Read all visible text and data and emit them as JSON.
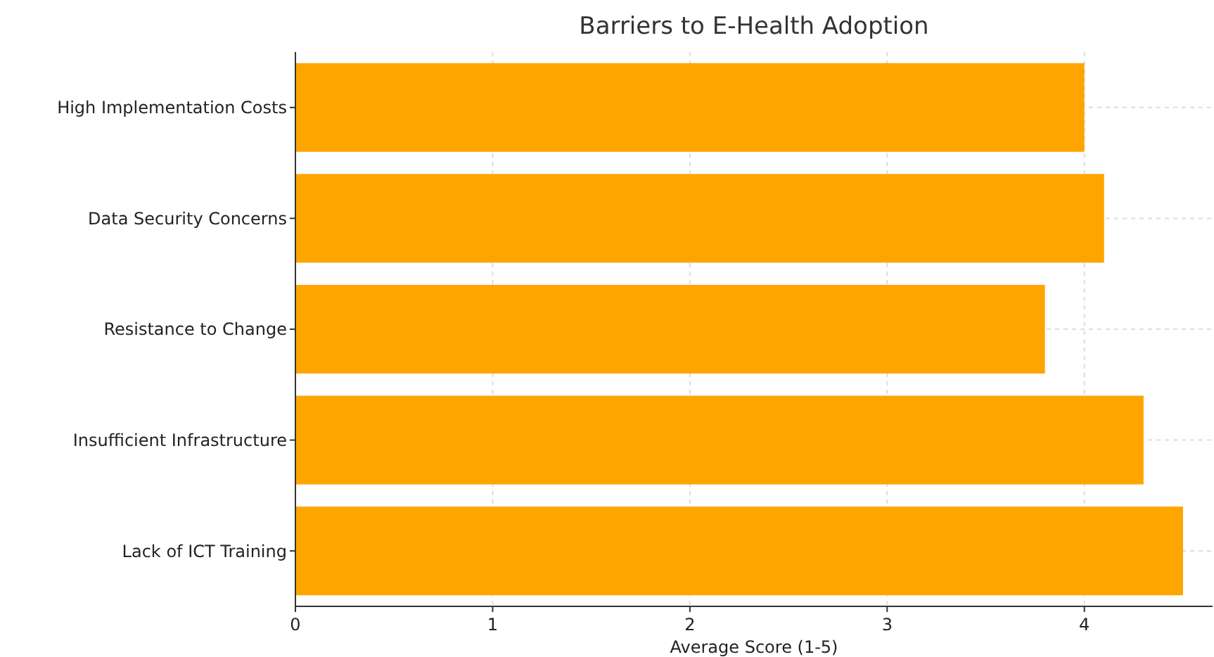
{
  "chart_data": {
    "type": "bar",
    "orientation": "horizontal",
    "title": "Barriers to E-Health Adoption",
    "xlabel": "Average Score (1-5)",
    "categories": [
      "High Implementation Costs",
      "Data Security Concerns",
      "Resistance to Change",
      "Insufficient Infrastructure",
      "Lack of ICT Training"
    ],
    "values": [
      4.0,
      4.1,
      3.8,
      4.3,
      4.5
    ],
    "color": "#ffa500",
    "xlim": [
      0,
      4.65
    ],
    "xticks": [
      0,
      1,
      2,
      3,
      4
    ],
    "grid": true
  }
}
